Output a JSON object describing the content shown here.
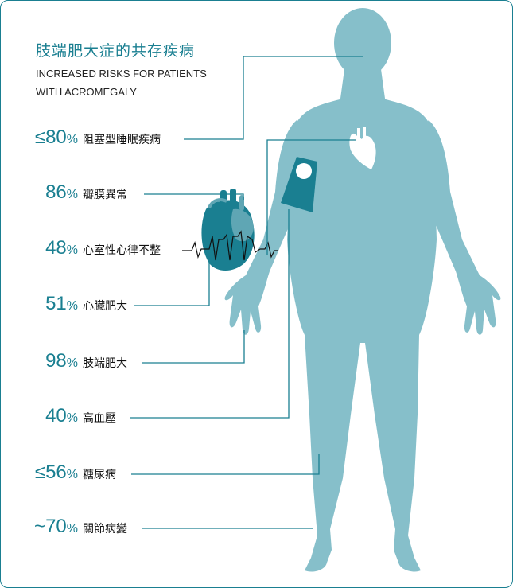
{
  "title": {
    "zh": "肢端肥大症的共存疾病",
    "en_line1": "INCREASED RISKS FOR PATIENTS",
    "en_line2": "WITH ACROMEGALY"
  },
  "stats": [
    {
      "value": "≤80",
      "unit": "%",
      "label": "阻塞型睡眠疾病"
    },
    {
      "value": "86",
      "unit": "%",
      "label": "瓣膜異常"
    },
    {
      "value": "48",
      "unit": "%",
      "label": "心室性心律不整"
    },
    {
      "value": "51",
      "unit": "%",
      "label": "心臟肥大"
    },
    {
      "value": "98",
      "unit": "%",
      "label": "肢端肥大"
    },
    {
      "value": "40",
      "unit": "%",
      "label": "高血壓"
    },
    {
      "value": "≤56",
      "unit": "%",
      "label": "糖尿病"
    },
    {
      "value": "~70",
      "unit": "%",
      "label": "關節病變"
    }
  ],
  "colors": {
    "accent": "#1a7f91",
    "body": "#86bfca",
    "heart_dark": "#1a7f91",
    "heart_light": "#5fa6b4",
    "text": "#111111"
  },
  "icons": [
    "body-silhouette-icon",
    "small-heart-icon",
    "heart-anatomy-icon",
    "ecg-trace-icon",
    "blood-pressure-cuff-icon"
  ]
}
